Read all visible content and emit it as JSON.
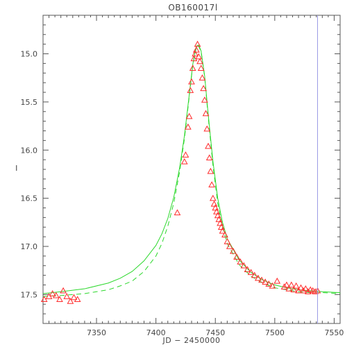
{
  "chart_data": {
    "type": "scatter",
    "title": "OB160017l",
    "xlabel": "JD − 2450000",
    "ylabel": "I",
    "xlim": [
      7305,
      7555
    ],
    "ylim": [
      17.8,
      14.6
    ],
    "y_inverted": true,
    "x_ticks": [
      7350,
      7400,
      7450,
      7500,
      7550
    ],
    "y_ticks": [
      15.0,
      15.5,
      16.0,
      16.5,
      17.0,
      17.5
    ],
    "x_tick_labels": [
      "7350",
      "7400",
      "7450",
      "7500",
      "7550"
    ],
    "y_tick_labels": [
      "15.0",
      "15.5",
      "16.0",
      "16.5",
      "17.0",
      "17.5"
    ],
    "vertical_line_x": 7536,
    "series": [
      {
        "marker": "triangle",
        "x": [
          7306,
          7310,
          7313,
          7316,
          7319,
          7322,
          7325,
          7328,
          7331,
          7334,
          7418,
          7424,
          7425,
          7427,
          7428,
          7429,
          7430,
          7431,
          7432,
          7433,
          7434,
          7435,
          7436,
          7437,
          7438,
          7439,
          7440,
          7441,
          7442,
          7443,
          7444,
          7445,
          7446,
          7447,
          7448,
          7449,
          7450,
          7451,
          7452,
          7453,
          7454,
          7455,
          7456,
          7458,
          7460,
          7462,
          7465,
          7468,
          7471,
          7474,
          7477,
          7480,
          7483,
          7486,
          7489,
          7492,
          7495,
          7498,
          7502,
          7508,
          7510,
          7512,
          7514,
          7516,
          7518,
          7520,
          7522,
          7524,
          7526,
          7528,
          7530,
          7532,
          7534,
          7536
        ],
        "y": [
          17.55,
          17.52,
          17.49,
          17.51,
          17.55,
          17.46,
          17.52,
          17.57,
          17.53,
          17.55,
          16.65,
          16.12,
          16.05,
          15.76,
          15.65,
          15.38,
          15.29,
          15.15,
          15.05,
          15.0,
          14.96,
          14.9,
          15.03,
          15.08,
          15.15,
          15.25,
          15.36,
          15.48,
          15.62,
          15.78,
          15.96,
          16.08,
          16.22,
          16.36,
          16.5,
          16.56,
          16.6,
          16.64,
          16.68,
          16.72,
          16.76,
          16.8,
          16.84,
          16.88,
          16.95,
          17.0,
          17.05,
          17.11,
          17.16,
          17.2,
          17.24,
          17.27,
          17.3,
          17.33,
          17.35,
          17.37,
          17.39,
          17.41,
          17.36,
          17.42,
          17.4,
          17.44,
          17.4,
          17.45,
          17.41,
          17.46,
          17.43,
          17.46,
          17.44,
          17.47,
          17.45,
          17.46,
          17.47,
          17.46
        ]
      },
      {
        "name": "",
        "style": "solid",
        "x": [
          7305,
          7320,
          7340,
          7360,
          7370,
          7380,
          7390,
          7400,
          7405,
          7410,
          7415,
          7420,
          7424,
          7428,
          7431,
          7434,
          7436,
          7438,
          7441,
          7444,
          7448,
          7452,
          7456,
          7460,
          7470,
          7480,
          7490,
          7500,
          7510,
          7520,
          7530,
          7540,
          7555
        ],
        "y": [
          17.49,
          17.47,
          17.44,
          17.38,
          17.33,
          17.26,
          17.15,
          16.99,
          16.87,
          16.71,
          16.49,
          16.18,
          15.85,
          15.43,
          15.11,
          14.92,
          14.91,
          14.97,
          15.23,
          15.63,
          16.12,
          16.5,
          16.75,
          16.92,
          17.14,
          17.27,
          17.35,
          17.4,
          17.43,
          17.45,
          17.46,
          17.47,
          17.48
        ]
      },
      {
        "name": "",
        "style": "dashed",
        "x": [
          7305,
          7320,
          7340,
          7360,
          7370,
          7380,
          7390,
          7400,
          7405,
          7410,
          7415,
          7420,
          7424,
          7428,
          7431,
          7434,
          7436,
          7438,
          7441,
          7444,
          7448,
          7452,
          7456,
          7460,
          7470,
          7480,
          7490,
          7500,
          7510,
          7520,
          7530,
          7540,
          7555
        ],
        "y": [
          17.52,
          17.51,
          17.49,
          17.45,
          17.41,
          17.36,
          17.26,
          17.1,
          16.97,
          16.79,
          16.55,
          16.22,
          15.88,
          15.45,
          15.12,
          14.93,
          14.92,
          14.98,
          15.24,
          15.66,
          16.16,
          16.55,
          16.8,
          16.97,
          17.19,
          17.31,
          17.38,
          17.43,
          17.45,
          17.47,
          17.48,
          17.48,
          17.49
        ]
      }
    ],
    "colors": {
      "data": "#ff2a2a",
      "model": "#2bd82b",
      "vline": "#9a9ae6",
      "axes": "#555555"
    },
    "grid": false
  }
}
